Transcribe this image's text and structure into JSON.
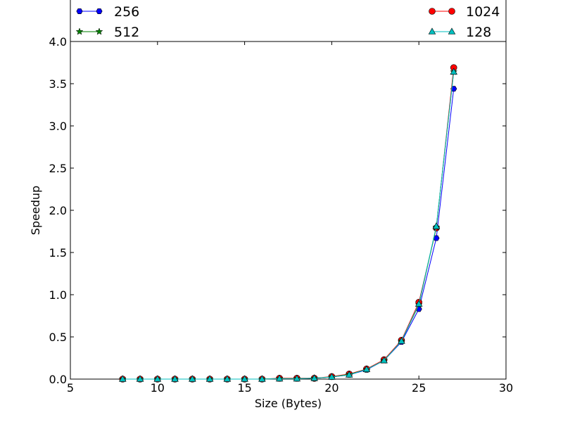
{
  "chart_data": {
    "type": "line",
    "title": "",
    "xlabel": "Size (Bytes)",
    "ylabel": "Speedup",
    "xlim": [
      5,
      30
    ],
    "ylim": [
      0,
      4.0
    ],
    "xticks": [
      5,
      10,
      15,
      20,
      25,
      30
    ],
    "yticks": [
      0.0,
      0.5,
      1.0,
      1.5,
      2.0,
      2.5,
      3.0,
      3.5,
      4.0
    ],
    "xtick_labels": [
      "5",
      "10",
      "15",
      "20",
      "25",
      "30"
    ],
    "ytick_labels": [
      "0.0",
      "0.5",
      "1.0",
      "1.5",
      "2.0",
      "2.5",
      "3.0",
      "3.5",
      "4.0"
    ],
    "grid": false,
    "legend_position": "top, outside plot",
    "x": [
      8,
      9,
      10,
      11,
      12,
      13,
      14,
      15,
      16,
      17,
      18,
      19,
      20,
      21,
      22,
      23,
      24,
      25,
      26,
      27
    ],
    "series": [
      {
        "name": "256",
        "color": "#0000ff",
        "marker": "hexagon",
        "values": [
          0.0,
          0.0,
          0.0,
          0.0,
          0.0,
          0.0,
          0.0,
          0.0,
          0.0,
          0.005,
          0.005,
          0.01,
          0.025,
          0.05,
          0.11,
          0.22,
          0.44,
          0.83,
          1.67,
          3.44
        ]
      },
      {
        "name": "1024",
        "color": "#ff0000",
        "marker": "circle",
        "values": [
          0.0,
          0.0,
          0.0,
          0.0,
          0.0,
          0.0,
          0.0,
          0.0,
          0.0,
          0.01,
          0.01,
          0.01,
          0.03,
          0.06,
          0.12,
          0.23,
          0.46,
          0.91,
          1.79,
          3.69
        ]
      },
      {
        "name": "512",
        "color": "#007f00",
        "marker": "star",
        "values": [
          0.0,
          0.0,
          0.0,
          0.0,
          0.0,
          0.0,
          0.0,
          0.0,
          0.0,
          0.005,
          0.005,
          0.01,
          0.025,
          0.055,
          0.115,
          0.22,
          0.45,
          0.88,
          1.8,
          3.64
        ]
      },
      {
        "name": "128",
        "color": "#00bfbf",
        "marker": "triangle",
        "values": [
          0.0,
          0.0,
          0.0,
          0.0,
          0.0,
          0.0,
          0.0,
          0.0,
          0.0,
          0.005,
          0.005,
          0.01,
          0.025,
          0.05,
          0.115,
          0.22,
          0.45,
          0.89,
          1.81,
          3.64
        ]
      }
    ],
    "legend_order": [
      "256",
      "1024",
      "512",
      "128"
    ]
  }
}
